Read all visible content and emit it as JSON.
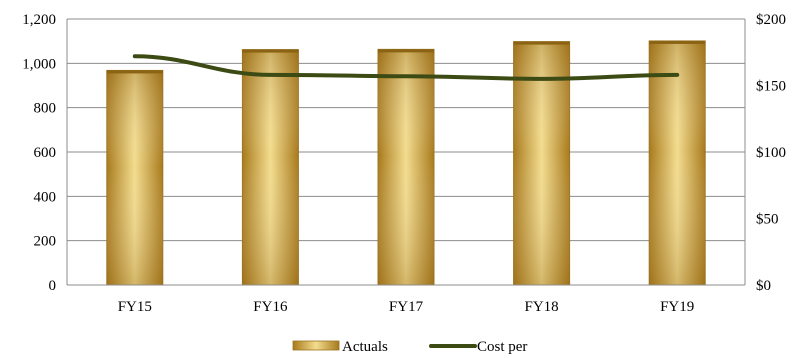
{
  "chart_data": {
    "type": "bar",
    "categories": [
      "FY15",
      "FY16",
      "FY17",
      "FY18",
      "FY19"
    ],
    "series": [
      {
        "name": "Actuals",
        "type": "bar",
        "axis": "left",
        "values": [
          968,
          1062,
          1063,
          1098,
          1101
        ],
        "color": "#c99a2e"
      },
      {
        "name": "Cost per",
        "type": "line",
        "axis": "right",
        "values": [
          172,
          158,
          157,
          155,
          158
        ],
        "color": "#3c4a14"
      }
    ],
    "y_left": {
      "min": 0,
      "max": 1200,
      "ticks": [
        0,
        200,
        400,
        600,
        800,
        1000,
        1200
      ],
      "tick_labels": [
        "0",
        "200",
        "400",
        "600",
        "800",
        "1,000",
        "1,200"
      ]
    },
    "y_right": {
      "min": 0,
      "max": 200,
      "ticks": [
        0,
        50,
        100,
        150,
        200
      ],
      "tick_labels": [
        "$0",
        "$50",
        "$100",
        "$150",
        "$200"
      ]
    },
    "grid": true,
    "legend": {
      "position": "bottom",
      "items": [
        {
          "label": "Actuals",
          "kind": "bar"
        },
        {
          "label": "Cost per",
          "kind": "line"
        }
      ]
    },
    "title": "",
    "xlabel": "",
    "ylabel": ""
  }
}
